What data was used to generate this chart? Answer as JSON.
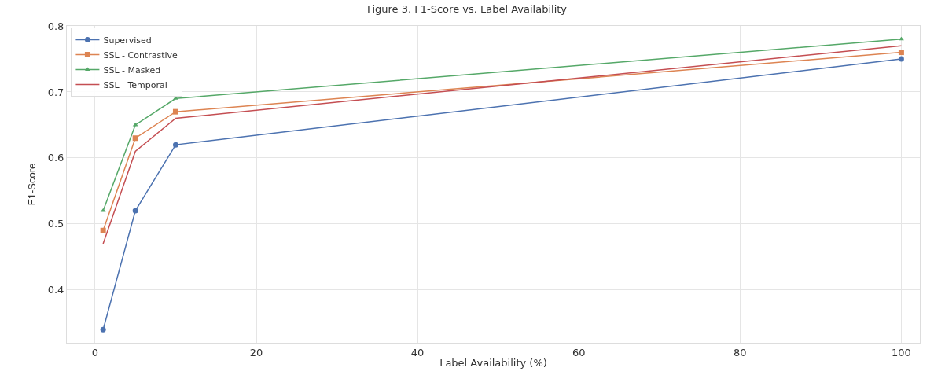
{
  "chart_data": {
    "type": "line",
    "title": "Figure 3. F1-Score vs. Label Availability",
    "xlabel": "Label Availability (%)",
    "ylabel": "F1-Score",
    "x": [
      1,
      5,
      10,
      100
    ],
    "series": [
      {
        "name": "Supervised",
        "color": "#4c72b0",
        "marker": "circle",
        "values": [
          0.34,
          0.52,
          0.62,
          0.75
        ]
      },
      {
        "name": "SSL - Contrastive",
        "color": "#dd8452",
        "marker": "square",
        "values": [
          0.49,
          0.63,
          0.67,
          0.76
        ]
      },
      {
        "name": "SSL - Masked",
        "color": "#55a868",
        "marker": "triangle",
        "values": [
          0.52,
          0.65,
          0.69,
          0.78
        ]
      },
      {
        "name": "SSL - Temporal",
        "color": "#c44e52",
        "marker": "none",
        "values": [
          0.47,
          0.61,
          0.66,
          0.77
        ]
      }
    ],
    "xlim": [
      -3.5,
      102.3
    ],
    "ylim": [
      0.32,
      0.8
    ],
    "xticks": [
      0,
      20,
      40,
      60,
      80,
      100
    ],
    "yticks": [
      0.4,
      0.5,
      0.6,
      0.7,
      0.8
    ],
    "grid": true,
    "legend": "top left",
    "line_style": "solid"
  }
}
